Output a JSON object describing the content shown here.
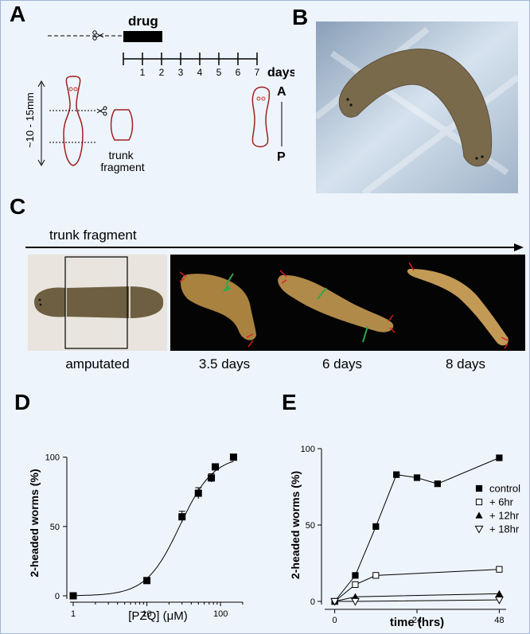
{
  "panels": {
    "a": {
      "label": "A",
      "drug": "drug",
      "days": "days",
      "ticks": [
        "1",
        "2",
        "3",
        "4",
        "5",
        "6",
        "7"
      ],
      "length": "~10 - 15mm",
      "fragment": "trunk\nfragment",
      "axis_a": "A",
      "axis_p": "P"
    },
    "b": {
      "label": "B"
    },
    "c": {
      "label": "C",
      "arrow_title": "trunk fragment",
      "captions": [
        "amputated",
        "3.5 days",
        "6 days",
        "8 days"
      ]
    },
    "d": {
      "label": "D"
    },
    "e": {
      "label": "E"
    }
  },
  "chart_data": [
    {
      "type": "scatter",
      "panel": "D",
      "xlabel": "[PZQ] (μM)",
      "ylabel": "2-headed worms (%)",
      "xscale": "log",
      "xlim": [
        1,
        200
      ],
      "ylim": [
        0,
        105
      ],
      "xticks": [
        1,
        10,
        100
      ],
      "yticks": [
        0,
        50,
        100
      ],
      "series": [
        {
          "x": [
            1,
            10,
            30,
            50,
            75,
            85,
            150
          ],
          "y": [
            0,
            11,
            57,
            74,
            85,
            93,
            100
          ],
          "err": [
            0,
            0,
            4,
            4,
            3,
            0,
            0
          ]
        }
      ],
      "fit": "sigmoid"
    },
    {
      "type": "line",
      "panel": "E",
      "xlabel": "time (hrs)",
      "ylabel": "2-headed worms (%)",
      "xlim": [
        -2,
        50
      ],
      "ylim": [
        0,
        100
      ],
      "xticks": [
        0,
        24,
        48
      ],
      "yticks": [
        0,
        50,
        100
      ],
      "legend_position": "right",
      "series": [
        {
          "name": "control",
          "marker": "filled-square",
          "x": [
            0,
            6,
            12,
            18,
            24,
            30,
            48
          ],
          "y": [
            0,
            17,
            49,
            83,
            81,
            77,
            94
          ]
        },
        {
          "name": "+ 6hr",
          "marker": "open-square",
          "x": [
            0,
            6,
            12,
            48
          ],
          "y": [
            0,
            11,
            17,
            21
          ]
        },
        {
          "name": "+ 12hr",
          "marker": "filled-triangle",
          "x": [
            0,
            6,
            48
          ],
          "y": [
            0,
            3,
            5
          ]
        },
        {
          "name": "+ 18hr",
          "marker": "open-triangle-down",
          "x": [
            0,
            6,
            48
          ],
          "y": [
            0,
            0,
            1
          ]
        }
      ]
    }
  ]
}
